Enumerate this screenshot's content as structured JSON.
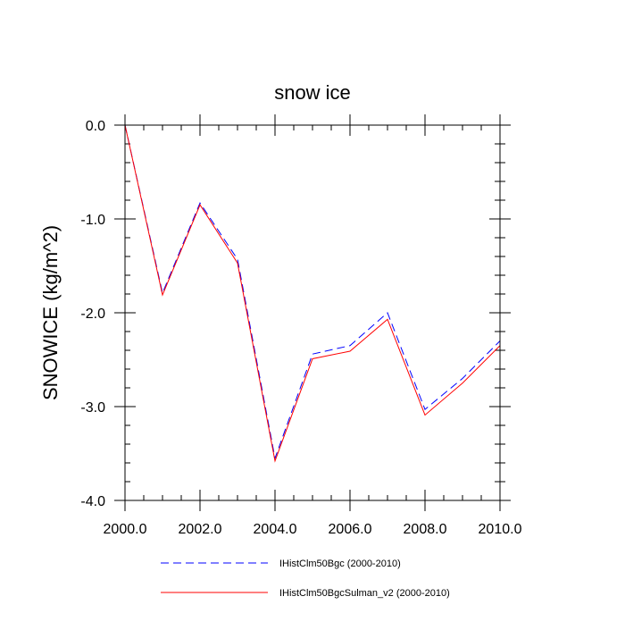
{
  "chart_data": {
    "type": "line",
    "title": "snow ice",
    "xlabel": "",
    "ylabel": "SNOWICE  (kg/m^2)",
    "xlim": [
      2000,
      2010
    ],
    "ylim": [
      -4.0,
      0.0
    ],
    "x_ticks": [
      "2000.0",
      "2002.0",
      "2004.0",
      "2006.0",
      "2008.0",
      "2010.0"
    ],
    "y_ticks": [
      "0.0",
      "-1.0",
      "-2.0",
      "-3.0",
      "-4.0"
    ],
    "x": [
      2000,
      2001,
      2002,
      2003,
      2004,
      2005,
      2006,
      2007,
      2008,
      2009,
      2010
    ],
    "grid": false,
    "legend_position": "bottom",
    "series": [
      {
        "name": "IHistClm50Bgc (2000-2010)",
        "color": "#0000ff",
        "style": "dashed",
        "values": [
          0.0,
          -1.79,
          -0.83,
          -1.43,
          -3.55,
          -2.44,
          -2.35,
          -2.0,
          -3.03,
          -2.7,
          -2.3
        ]
      },
      {
        "name": "IHistClm50BgcSulman_v2 (2000-2010)",
        "color": "#ff0000",
        "style": "solid",
        "values": [
          0.0,
          -1.81,
          -0.85,
          -1.47,
          -3.58,
          -2.49,
          -2.41,
          -2.07,
          -3.09,
          -2.75,
          -2.35
        ]
      }
    ]
  }
}
